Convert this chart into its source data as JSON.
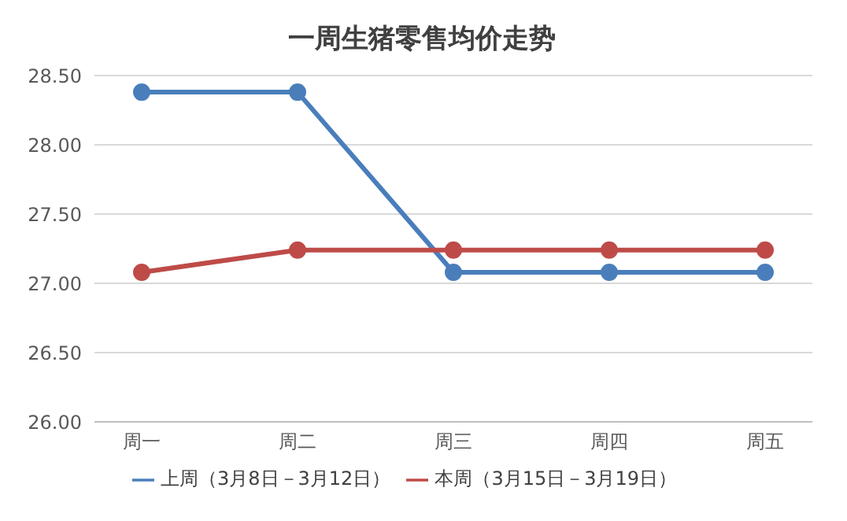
{
  "chart_data": {
    "type": "line",
    "title": "一周生猪零售均价走势",
    "categories": [
      "周一",
      "周二",
      "周三",
      "周四",
      "周五"
    ],
    "series": [
      {
        "name": "上周（3月8日－3月12日）",
        "color": "#4a7ebb",
        "values": [
          28.38,
          28.38,
          27.08,
          27.08,
          27.08
        ]
      },
      {
        "name": "本周（3月15日－3月19日）",
        "color": "#be4b48",
        "values": [
          27.08,
          27.24,
          27.24,
          27.24,
          27.24
        ]
      }
    ],
    "ylim": [
      26,
      28.5
    ],
    "yticks": [
      {
        "value": 26,
        "label": "26.00"
      },
      {
        "value": 26.5,
        "label": "26.50"
      },
      {
        "value": 27,
        "label": "27.00"
      },
      {
        "value": 27.5,
        "label": "27.50"
      },
      {
        "value": 28,
        "label": "28.00"
      },
      {
        "value": 28.5,
        "label": "28.50"
      }
    ],
    "grid": "y",
    "legend": "bottom",
    "marker": "circle",
    "line_style": "solid"
  }
}
